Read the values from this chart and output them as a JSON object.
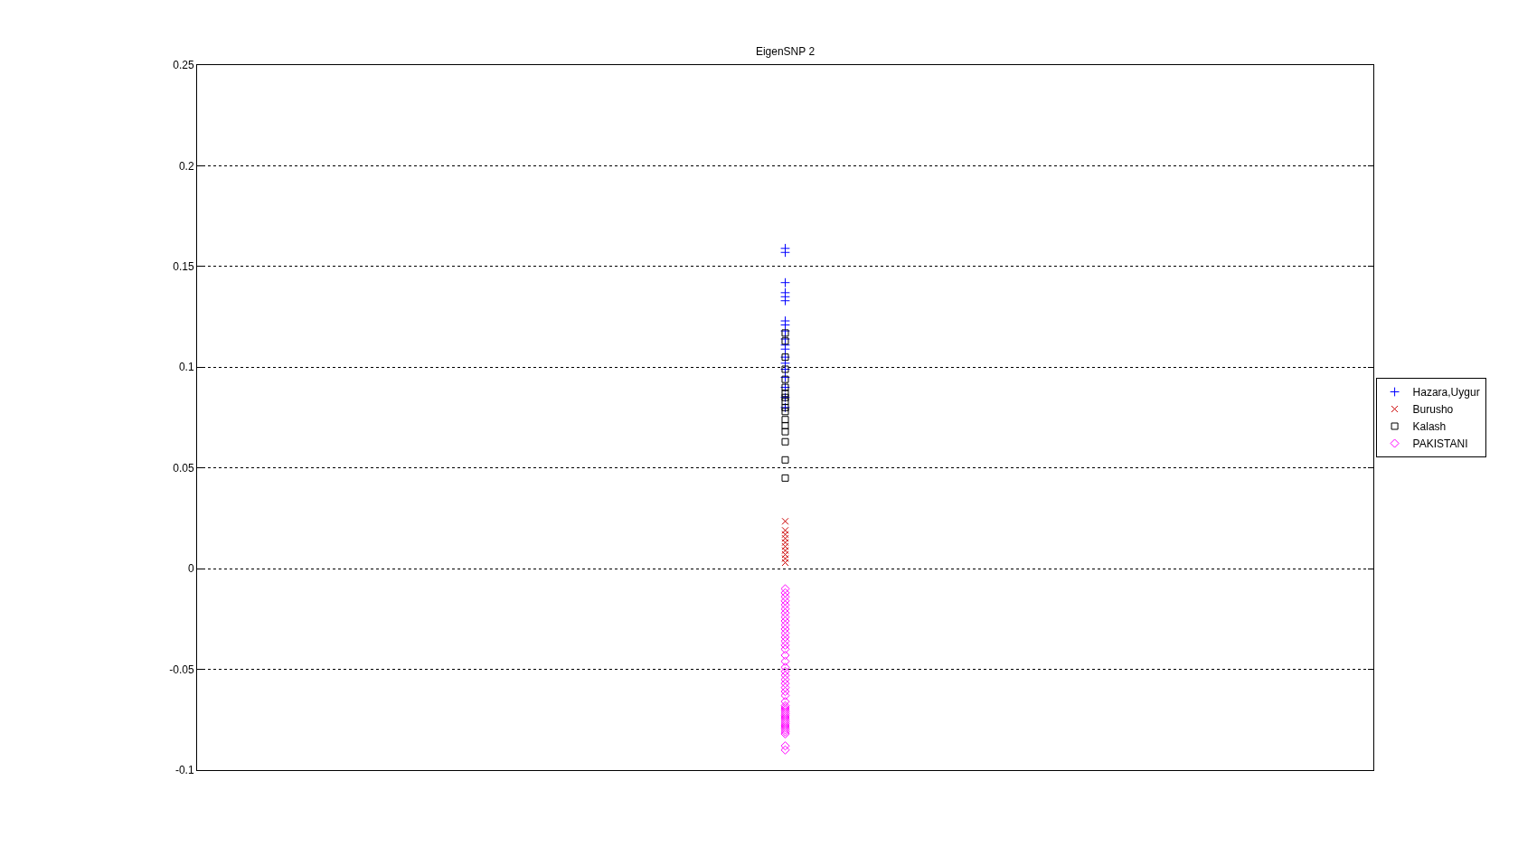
{
  "chart_data": {
    "type": "scatter",
    "title": "EigenSNP 2",
    "categories": [
      null
    ],
    "ylim": [
      -0.1,
      0.25
    ],
    "yticks": [
      -0.1,
      -0.05,
      0,
      0.05,
      0.1,
      0.15,
      0.2,
      0.25
    ],
    "tick_labels": "y",
    "grid": "y",
    "legend": "right",
    "series": [
      {
        "name": "Hazara,Uygur",
        "color": "#0000ff",
        "marker": "cross",
        "x": [
          null,
          null,
          null,
          null,
          null,
          null,
          null,
          null,
          null,
          null,
          null,
          null,
          null,
          null,
          null,
          null,
          null,
          null,
          null
        ],
        "values": [
          0.159,
          0.157,
          0.142,
          0.137,
          0.135,
          0.133,
          0.123,
          0.121,
          0.118,
          0.114,
          0.111,
          0.109,
          0.105,
          0.102,
          0.099,
          0.095,
          0.09,
          0.085,
          0.08
        ]
      },
      {
        "name": "Burusho",
        "color": "#cc0000",
        "marker": "x",
        "x": [
          null,
          null,
          null,
          null,
          null,
          null,
          null,
          null,
          null,
          null
        ],
        "values": [
          0.0235,
          0.019,
          0.017,
          0.015,
          0.013,
          0.011,
          0.009,
          0.007,
          0.005,
          0.003
        ]
      },
      {
        "name": "Kalash",
        "color": "#000000",
        "marker": "square",
        "x": [
          null,
          null,
          null,
          null,
          null,
          null,
          null,
          null,
          null,
          null,
          null,
          null,
          null,
          null,
          null,
          null,
          null
        ],
        "values": [
          0.117,
          0.113,
          0.105,
          0.099,
          0.094,
          0.09,
          0.087,
          0.085,
          0.083,
          0.08,
          0.078,
          0.074,
          0.071,
          0.068,
          0.063,
          0.054,
          0.045
        ]
      },
      {
        "name": "PAKISTANI",
        "color": "#ff00ff",
        "marker": "diamond",
        "x": [
          null,
          null,
          null,
          null,
          null,
          null,
          null,
          null,
          null,
          null,
          null,
          null,
          null,
          null,
          null,
          null,
          null,
          null,
          null,
          null,
          null,
          null,
          null,
          null,
          null,
          null,
          null,
          null,
          null,
          null,
          null,
          null,
          null,
          null,
          null,
          null,
          null,
          null,
          null,
          null,
          null,
          null,
          null,
          null
        ],
        "values": [
          -0.01,
          -0.012,
          -0.014,
          -0.016,
          -0.018,
          -0.02,
          -0.022,
          -0.024,
          -0.026,
          -0.028,
          -0.03,
          -0.032,
          -0.034,
          -0.036,
          -0.038,
          -0.04,
          -0.043,
          -0.046,
          -0.049,
          -0.051,
          -0.053,
          -0.055,
          -0.057,
          -0.059,
          -0.061,
          -0.063,
          -0.066,
          -0.068,
          -0.069,
          -0.07,
          -0.071,
          -0.072,
          -0.073,
          -0.074,
          -0.075,
          -0.076,
          -0.077,
          -0.078,
          -0.079,
          -0.08,
          -0.081,
          -0.082,
          -0.088,
          -0.09
        ]
      }
    ]
  }
}
